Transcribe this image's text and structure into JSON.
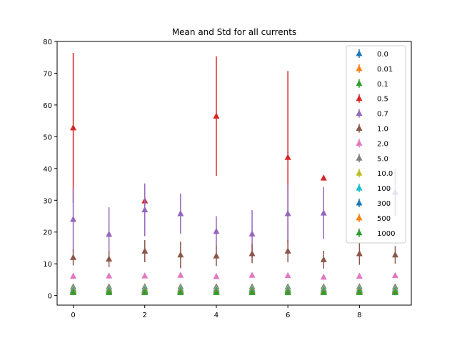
{
  "chart_data": {
    "type": "scatter",
    "title": "Mean and Std for all currents",
    "xlabel": "",
    "ylabel": "",
    "xlim": [
      -0.45,
      9.45
    ],
    "ylim": [
      -3,
      80
    ],
    "x_ticks": [
      0,
      2,
      4,
      6,
      8
    ],
    "y_ticks": [
      0,
      10,
      20,
      30,
      40,
      50,
      60,
      70,
      80
    ],
    "grid": false,
    "legend_position": "top-right",
    "marker": "triangle-up",
    "series": [
      {
        "name": "0.0",
        "color": "#1f77b4",
        "mean": [
          1.2,
          1.2,
          1.2,
          1.2,
          1.2,
          1.2,
          1.2,
          1.2,
          1.2,
          1.2
        ],
        "std": [
          0,
          0,
          0,
          0,
          0,
          0,
          0,
          0,
          0,
          0
        ]
      },
      {
        "name": "0.01",
        "color": "#ff7f0e",
        "mean": [
          1.6,
          1.6,
          1.6,
          1.6,
          1.6,
          1.6,
          1.6,
          1.6,
          1.6,
          1.6
        ],
        "std": [
          0,
          0,
          0,
          0,
          0,
          0,
          0,
          0,
          0,
          0
        ]
      },
      {
        "name": "0.1",
        "color": "#2ca02c",
        "mean": [
          1.0,
          1.0,
          1.0,
          1.0,
          1.0,
          1.0,
          1.0,
          1.0,
          1.0,
          1.0
        ],
        "std": [
          0,
          0,
          0,
          0,
          0,
          0,
          0,
          0,
          0,
          0
        ]
      },
      {
        "name": "0.5",
        "color": "#d62728",
        "mean": [
          52.8,
          null,
          29.8,
          null,
          56.5,
          null,
          43.5,
          37.0,
          null,
          null
        ],
        "std": [
          23.6,
          0,
          0,
          0,
          18.8,
          0,
          27.2,
          0,
          0,
          0
        ]
      },
      {
        "name": "0.7",
        "color": "#9467bd",
        "mean": [
          24.0,
          19.3,
          27.0,
          25.8,
          20.2,
          19.4,
          25.8,
          26.0,
          null,
          32.5
        ],
        "std": [
          10.0,
          8.5,
          8.3,
          6.3,
          4.8,
          7.5,
          9.0,
          8.2,
          0,
          7.5
        ]
      },
      {
        "name": "1.0",
        "color": "#8c564b",
        "mean": [
          12.0,
          11.5,
          14.0,
          12.8,
          12.5,
          13.2,
          14.0,
          11.3,
          13.2,
          12.8
        ],
        "std": [
          2.5,
          2.5,
          3.5,
          4.2,
          3.2,
          3.0,
          3.5,
          2.8,
          3.5,
          2.8
        ]
      },
      {
        "name": "2.0",
        "color": "#e377c2",
        "mean": [
          6.1,
          6.2,
          6.2,
          6.4,
          6.0,
          6.4,
          6.3,
          5.8,
          6.1,
          6.3
        ],
        "std": [
          0,
          0,
          0,
          0,
          0,
          0,
          0,
          0,
          0,
          0
        ]
      },
      {
        "name": "5.0",
        "color": "#7f7f7f",
        "mean": [
          2.8,
          2.8,
          2.8,
          2.8,
          2.8,
          2.8,
          2.8,
          2.8,
          2.8,
          2.8
        ],
        "std": [
          0,
          0,
          0,
          0,
          0,
          0,
          0,
          0,
          0,
          0
        ]
      },
      {
        "name": "10.0",
        "color": "#bcbd22",
        "mean": [
          2.2,
          2.2,
          2.2,
          2.2,
          2.2,
          2.2,
          2.2,
          2.2,
          2.2,
          2.2
        ],
        "std": [
          0,
          0,
          0,
          0,
          0,
          0,
          0,
          0,
          0,
          0
        ]
      },
      {
        "name": "100",
        "color": "#17becf",
        "mean": [
          1.9,
          1.9,
          1.9,
          1.9,
          1.9,
          1.9,
          1.9,
          1.9,
          1.9,
          1.9
        ],
        "std": [
          0,
          0,
          0,
          0,
          0,
          0,
          0,
          0,
          0,
          0
        ]
      },
      {
        "name": "300",
        "color": "#1f77b4",
        "mean": [
          1.5,
          1.5,
          1.5,
          1.5,
          1.5,
          1.5,
          1.5,
          1.5,
          1.5,
          1.5
        ],
        "std": [
          0,
          0,
          0,
          0,
          0,
          0,
          0,
          0,
          0,
          0
        ]
      },
      {
        "name": "500",
        "color": "#ff7f0e",
        "mean": [
          1.3,
          1.3,
          1.3,
          1.3,
          1.3,
          1.3,
          1.3,
          1.3,
          1.3,
          1.3
        ],
        "std": [
          0,
          0,
          0,
          0,
          0,
          0,
          0,
          0,
          0,
          0
        ]
      },
      {
        "name": "1000",
        "color": "#2ca02c",
        "mean": [
          1.0,
          1.0,
          1.0,
          1.0,
          1.0,
          1.0,
          1.0,
          1.0,
          1.0,
          1.0
        ],
        "std": [
          0,
          0,
          0,
          0,
          0,
          0,
          0,
          0,
          0,
          0
        ]
      }
    ]
  }
}
